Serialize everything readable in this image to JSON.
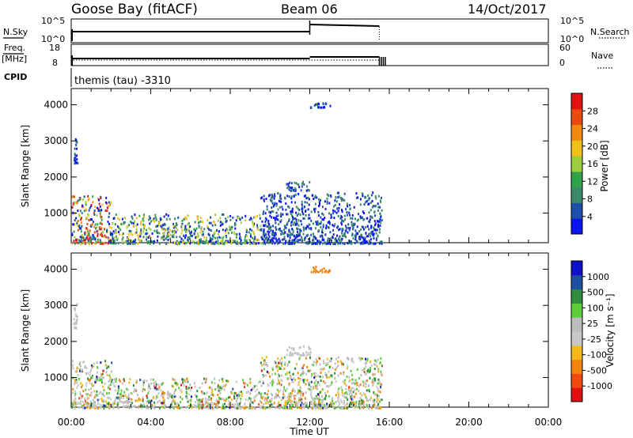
{
  "header": {
    "station": "Goose Bay (fitACF)",
    "beam": "Beam 06",
    "date": "14/Oct/2017",
    "program": "themis (tau) -3310"
  },
  "small_panels": {
    "nsky_label": "N.Sky",
    "nsky_ticks": [
      "10^5",
      "10^0"
    ],
    "nsearch_label": "N.Search",
    "nsearch_ticks": [
      "10^5",
      "10^0"
    ],
    "freq_label": "Freq.",
    "freq_unit": "[MHz]",
    "freq_ticks": [
      "18",
      "8"
    ],
    "nave_label": "Nave",
    "nave_ticks": [
      "60",
      "0"
    ],
    "cpid_label": "CPID"
  },
  "colors": {
    "power_scale": [
      "#0a14ee",
      "#1f4fa8",
      "#3a8a6a",
      "#2fa24a",
      "#9ccd3e",
      "#f2c01a",
      "#f08a10",
      "#e84a12",
      "#e01212"
    ],
    "velocity_scale": [
      "#e01010",
      "#ee4a10",
      "#f2850e",
      "#f5b81c",
      "#c8c8c8",
      "#bcbcbc",
      "#5ccc3a",
      "#2e8e3e",
      "#1f4fa0",
      "#1010c8"
    ]
  },
  "chart_data": [
    {
      "type": "heatmap",
      "panel": "power",
      "ylabel": "Slant Range [km]",
      "xlabel": "Time UT",
      "x_ticks": [
        "00:00",
        "04:00",
        "08:00",
        "12:00",
        "16:00",
        "20:00",
        "00:00"
      ],
      "y_ticks": [
        "1000",
        "2000",
        "3000",
        "4000"
      ],
      "ylim": [
        180,
        4450
      ],
      "colorbar_label": "Power [dB]",
      "colorbar_ticks": [
        "4",
        "8",
        "12",
        "16",
        "20",
        "24",
        "28"
      ],
      "scatter_regions": [
        {
          "t_start": 0.0,
          "t_end": 2.0,
          "r_start": 180,
          "r_end": 1500,
          "level": "high"
        },
        {
          "t_start": 2.0,
          "t_end": 9.5,
          "r_start": 180,
          "r_end": 1000,
          "level": "mid"
        },
        {
          "t_start": 9.5,
          "t_end": 15.6,
          "r_start": 180,
          "r_end": 1600,
          "level": "low"
        },
        {
          "t_start": 10.8,
          "t_end": 12.0,
          "r_start": 1650,
          "r_end": 1900,
          "level": "low"
        },
        {
          "t_start": 0.1,
          "t_end": 0.3,
          "r_start": 2400,
          "r_end": 3100,
          "level": "low"
        },
        {
          "t_start": 12.0,
          "t_end": 13.0,
          "r_start": 3950,
          "r_end": 4100,
          "level": "low"
        }
      ]
    },
    {
      "type": "heatmap",
      "panel": "velocity",
      "ylabel": "Slant Range [km]",
      "xlabel": "Time UT",
      "x_ticks": [
        "00:00",
        "04:00",
        "08:00",
        "12:00",
        "16:00",
        "20:00",
        "00:00"
      ],
      "y_ticks": [
        "1000",
        "2000",
        "3000",
        "4000"
      ],
      "ylim": [
        180,
        4450
      ],
      "colorbar_label": "Velocity [m s⁻¹]",
      "colorbar_ticks": [
        "1000",
        "500",
        "100",
        "25",
        "-25",
        "-100",
        "-500",
        "-1000"
      ],
      "scatter_regions": [
        {
          "t_start": 0.0,
          "t_end": 2.0,
          "r_start": 180,
          "r_end": 1500,
          "level": "mixed"
        },
        {
          "t_start": 2.0,
          "t_end": 9.5,
          "r_start": 180,
          "r_end": 1000,
          "level": "mixed"
        },
        {
          "t_start": 9.5,
          "t_end": 15.6,
          "r_start": 180,
          "r_end": 1600,
          "level": "mixed"
        },
        {
          "t_start": 10.8,
          "t_end": 12.0,
          "r_start": 1650,
          "r_end": 1900,
          "level": "gray"
        },
        {
          "t_start": 0.1,
          "t_end": 0.3,
          "r_start": 2400,
          "r_end": 3100,
          "level": "gray"
        },
        {
          "t_start": 12.0,
          "t_end": 13.0,
          "r_start": 3950,
          "r_end": 4100,
          "level": "orange"
        }
      ]
    }
  ]
}
